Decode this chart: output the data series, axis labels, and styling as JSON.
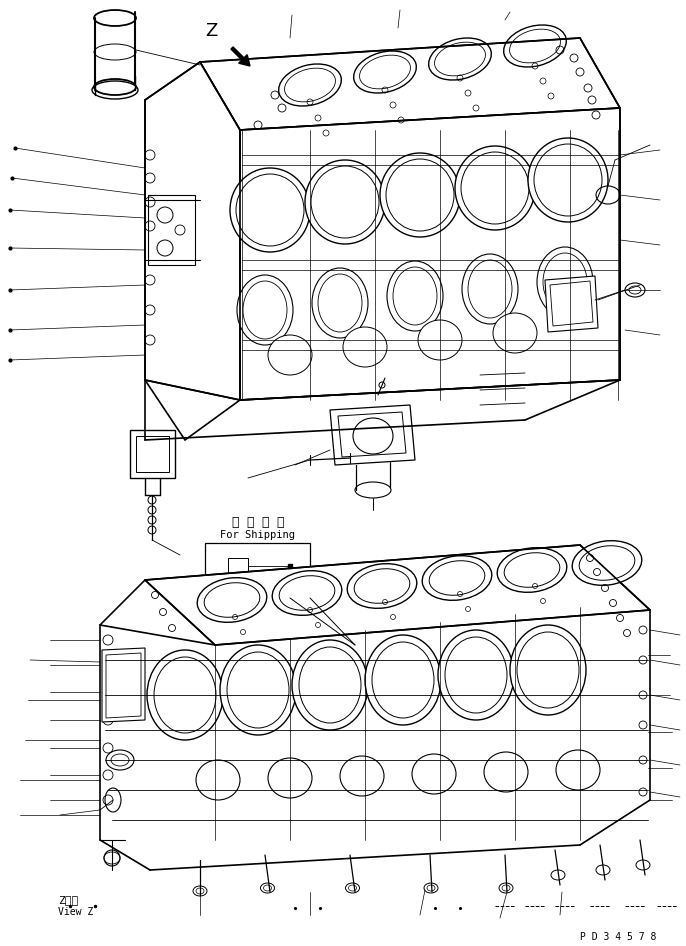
{
  "bg_color": "#ffffff",
  "fig_width": 6.86,
  "fig_height": 9.46,
  "dpi": 100,
  "label_z_top": "Z",
  "label_z_bottom": "Z　視",
  "label_view_z": "View Z",
  "label_for_shipping_jp": "運 搬 部 品",
  "label_for_shipping_en": "For Shipping",
  "label_pd": "P D 3 4 5 7 8",
  "lc": "#000000",
  "lw": 0.7
}
